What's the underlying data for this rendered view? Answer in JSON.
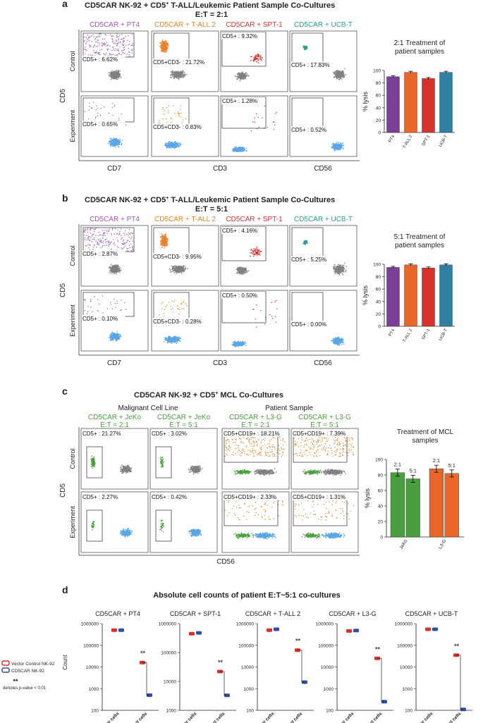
{
  "panel_a": {
    "letter": "a",
    "title_1": "CD5CAR NK-92  + CD5",
    "title_sup": "+",
    "title_2": " T-ALL/Leukemic Patient Sample Co-Cultures",
    "subtitle": "E:T = 2:1",
    "col_headers": [
      "CD5CAR + PT4",
      "CD5CAR + T-ALL 2",
      "CD5CAR + SPT-1",
      "CD5CAR + UCB-T"
    ],
    "row_labels": [
      "Control",
      "Experiment"
    ],
    "y_axis": "CD5",
    "x_axes": [
      "CD7",
      "CD3",
      "CD56"
    ],
    "gates": [
      [
        "CD5+ : 6.62%",
        "CD5+CD3- : 21.72%",
        "CD5+ : 9.32%",
        "CD5+ : 17.83%"
      ],
      [
        "CD5+ : 0.65%",
        "CD5+CD3- : 0.83%",
        "CD5+ : 1.28%",
        "CD5+ : 0.52%"
      ]
    ]
  },
  "panel_b": {
    "letter": "b",
    "title_1": "CD5CAR NK-92  + CD5",
    "title_sup": "+",
    "title_2": " T-ALL/Leukemic Patient Sample Co-Cultures",
    "subtitle": "E:T = 5:1",
    "col_headers": [
      "CD5CAR + PT4",
      "CD5CAR + T-ALL 2",
      "CD5CAR + SPT-1",
      "CD5CAR + UCB-T"
    ],
    "row_labels": [
      "Control",
      "Experiment"
    ],
    "y_axis": "CD5",
    "x_axes": [
      "CD7",
      "CD3",
      "CD56"
    ],
    "gates": [
      [
        "CD5+ : 2.87%",
        "CD5+CD3- : 9.95%",
        "CD5+ : 4.16%",
        "CD5+ : 5.25%"
      ],
      [
        "CD5+ : 0.10%",
        "CD5+CD3- : 0.28%",
        "CD5+ : 0.50%",
        "CD5+ : 0.00%"
      ]
    ]
  },
  "panel_c": {
    "letter": "c",
    "title_1": "CD5CAR NK-92  + CD5",
    "title_sup": "+",
    "title_2": " MCL Co-Cultures",
    "group_1": "Malignant Cell Line",
    "group_2": "Patient Sample",
    "col_headers": [
      "CD5CAR + JeKo",
      "CD5CAR + JeKo",
      "CD5CAR + L3-G",
      "CD5CAR + L3-G"
    ],
    "col_ratios": [
      "E:T = 2:1",
      "E:T = 5:1",
      "E:T = 2:1",
      "E:T = 5:1"
    ],
    "row_labels": [
      "Control",
      "Experiment"
    ],
    "y_axis": "CD5",
    "x_axis": "CD56",
    "gates": [
      [
        "CD5+ : 21.27%",
        "CD5+ : 3.02%",
        "CD5+CD19+ : 18.21%",
        "CD5+CD19+ : 7.39%"
      ],
      [
        "CD5+ : 2.27%",
        "CD5+ : 0.42%",
        "CD5+CD19+ : 2.33%",
        "CD5+CD19+ : 1.31%"
      ]
    ]
  },
  "panel_d": {
    "letter": "d",
    "title": "Absolute cell counts of patient E:T~5:1 co-cultures",
    "legend": [
      "Vector Control NK-92",
      "CD5CAR NK-92"
    ],
    "sig_mark": "**",
    "sig_note": "denotes p-value < 0.01",
    "y_label": "Count",
    "categories": [
      "Effector cells",
      "Target cells"
    ]
  },
  "colors": {
    "purple": "#9b59b6",
    "orange": "#e8822a",
    "red": "#d9302c",
    "teal": "#2a9d8f",
    "green": "#4a9e3f",
    "blue": "#2e4fa3",
    "gray": "#808080",
    "lightblue": "#5aa6e6"
  },
  "chart_data": [
    {
      "type": "bar",
      "title": "2:1 Treatment of patient samples",
      "title_lines": [
        "2:1 Treatment of",
        "patient samples"
      ],
      "ylabel": "% lysis",
      "ylim": [
        0,
        100
      ],
      "yticks": [
        0,
        20,
        40,
        60,
        80,
        100
      ],
      "categories": [
        "PT4",
        "T-ALL 2",
        "SPT-1",
        "UCB-T"
      ],
      "values": [
        90,
        97,
        87,
        97
      ],
      "colors": [
        "#7b3f98",
        "#e8662a",
        "#d9302c",
        "#2f7ea3"
      ]
    },
    {
      "type": "bar",
      "title": "5:1 Treatment of patient samples",
      "title_lines": [
        "5:1 Treatment of",
        "patient samples"
      ],
      "ylabel": "% lysis",
      "ylim": [
        0,
        100
      ],
      "yticks": [
        0,
        20,
        40,
        60,
        80,
        100
      ],
      "categories": [
        "PT4",
        "T-ALL 2",
        "SPT-1",
        "UCB-T"
      ],
      "values": [
        95,
        99,
        94,
        99
      ],
      "colors": [
        "#7b3f98",
        "#e8662a",
        "#d9302c",
        "#2f7ea3"
      ]
    },
    {
      "type": "bar",
      "title": "Treatment of MCL samples",
      "title_lines": [
        "Treatment of MCL",
        "samples"
      ],
      "ylabel": "% lysis",
      "ylim": [
        0,
        100
      ],
      "yticks": [
        0,
        20,
        40,
        60,
        80,
        100
      ],
      "categories": [
        "JeKo",
        "L3-G"
      ],
      "bar_labels": [
        "2:1",
        "5:1",
        "2:1",
        "5:1"
      ],
      "series": [
        {
          "values": [
            83,
            75
          ],
          "color": "#4a9e3f"
        },
        {
          "values": [
            88,
            82
          ],
          "color": "#e8662a"
        }
      ]
    },
    {
      "type": "scatter",
      "log_y": true,
      "panels": [
        {
          "title": "CD5CAR + PT4",
          "ylim": [
            100,
            1000000
          ],
          "yticks": [
            "100",
            "1000",
            "10000",
            "100000",
            "1000000"
          ],
          "control": [
            500000,
            16000
          ],
          "car": [
            500000,
            500
          ]
        },
        {
          "title": "CD5CAR + SPT-1",
          "ylim": [
            1000,
            1000000
          ],
          "yticks": [
            "1000",
            "10000",
            "100000",
            "1000000"
          ],
          "control": [
            450000,
            22000
          ],
          "car": [
            480000,
            3300
          ]
        },
        {
          "title": "CD5CAR + T-ALL 2",
          "ylim": [
            100,
            1000000
          ],
          "yticks": [
            "100",
            "1000",
            "10000",
            "100000",
            "1000000"
          ],
          "control": [
            500000,
            60000
          ],
          "car": [
            550000,
            2000
          ]
        },
        {
          "title": "CD5CAR + L3-G",
          "ylim": [
            100,
            1000000
          ],
          "yticks": [
            "100",
            "1000",
            "10000",
            "100000",
            "1000000"
          ],
          "control": [
            460000,
            25000
          ],
          "car": [
            480000,
            250
          ]
        },
        {
          "title": "CD5CAR + UCB-T",
          "ylim": [
            100,
            1000000
          ],
          "yticks": [
            "100",
            "1000",
            "10000",
            "100000",
            "1000000"
          ],
          "control": [
            550000,
            35000
          ],
          "car": [
            550000,
            110
          ]
        }
      ]
    }
  ]
}
